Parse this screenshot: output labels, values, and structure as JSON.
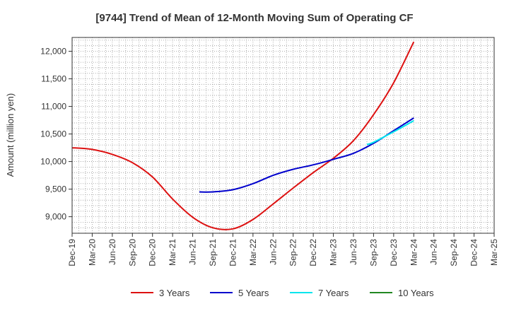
{
  "chart_data": {
    "type": "line",
    "title": "[9744]  Trend of Mean of 12-Month Moving Sum of Operating CF",
    "xlabel": "",
    "ylabel": "Amount (million yen)",
    "categories": [
      "Dec-19",
      "Mar-20",
      "Jun-20",
      "Sep-20",
      "Dec-20",
      "Mar-21",
      "Jun-21",
      "Sep-21",
      "Dec-21",
      "Mar-22",
      "Jun-22",
      "Sep-22",
      "Dec-22",
      "Mar-23",
      "Jun-23",
      "Sep-23",
      "Dec-23",
      "Mar-24",
      "Jun-24",
      "Sep-24",
      "Dec-24",
      "Mar-25"
    ],
    "yticks": [
      9000,
      9500,
      10000,
      10500,
      11000,
      11500,
      12000
    ],
    "ytick_labels": [
      "9,000",
      "9,500",
      "10,000",
      "10,500",
      "11,000",
      "11,500",
      "12,000"
    ],
    "ylim": [
      8700,
      12250
    ],
    "grid": true,
    "legend_position": "bottom",
    "series": [
      {
        "name": "3 Years",
        "color": "#dd1111",
        "x": [
          0,
          1,
          2,
          3,
          4,
          5,
          6,
          7,
          8,
          9,
          10,
          11,
          12,
          13,
          14,
          15,
          16,
          17
        ],
        "values": [
          10250,
          10220,
          10130,
          9980,
          9720,
          9320,
          8990,
          8800,
          8780,
          8950,
          9230,
          9520,
          9800,
          10060,
          10380,
          10850,
          11430,
          12170
        ]
      },
      {
        "name": "5 Years",
        "color": "#0000cc",
        "x": [
          6.33,
          7,
          8,
          9,
          10,
          11,
          12,
          13,
          14,
          15,
          16,
          17
        ],
        "values": [
          9450,
          9450,
          9490,
          9600,
          9750,
          9860,
          9940,
          10040,
          10150,
          10330,
          10560,
          10790
        ]
      },
      {
        "name": "7 Years",
        "color": "#00e5ee",
        "x": [
          14.67,
          15,
          16,
          17
        ],
        "values": [
          10310,
          10350,
          10540,
          10740
        ]
      },
      {
        "name": "10 Years",
        "color": "#228822",
        "x": [],
        "values": []
      }
    ]
  }
}
